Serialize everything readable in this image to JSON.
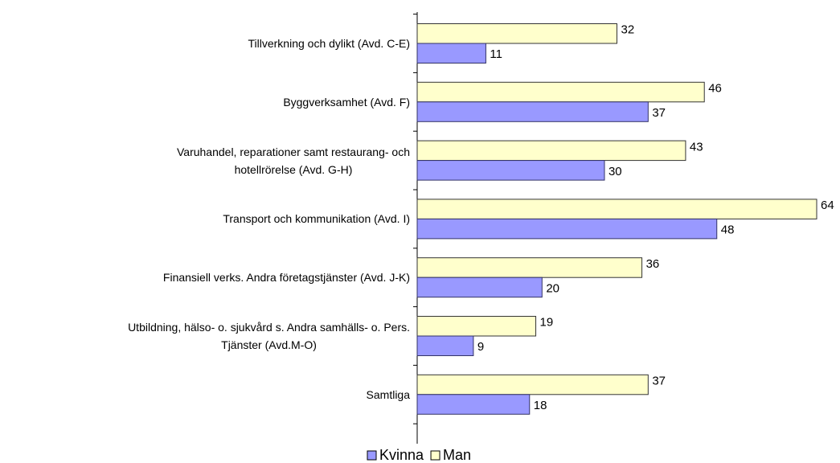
{
  "chart_data": {
    "type": "bar",
    "orientation": "horizontal",
    "categories": [
      "Tillverkning och dylikt (Avd. C-E)",
      "Byggverksamhet (Avd. F)",
      "Varuhandel, reparationer samt restaurang- och\nhotellrörelse (Avd. G-H)",
      "Transport och kommunikation (Avd. I)",
      "Finansiell verks. Andra företagstjänster (Avd. J-K)",
      "Utbildning, hälso- o. sjukvård s. Andra samhälls- o. Pers.\nTjänster (Avd.M-O)",
      "Samtliga"
    ],
    "series": [
      {
        "name": "Kvinna",
        "color": "#9999ff",
        "values": [
          11,
          37,
          30,
          48,
          20,
          9,
          18
        ]
      },
      {
        "name": "Man",
        "color": "#ffffcc",
        "values": [
          32,
          46,
          43,
          64,
          36,
          19,
          37
        ]
      }
    ],
    "legend": "bottom"
  }
}
